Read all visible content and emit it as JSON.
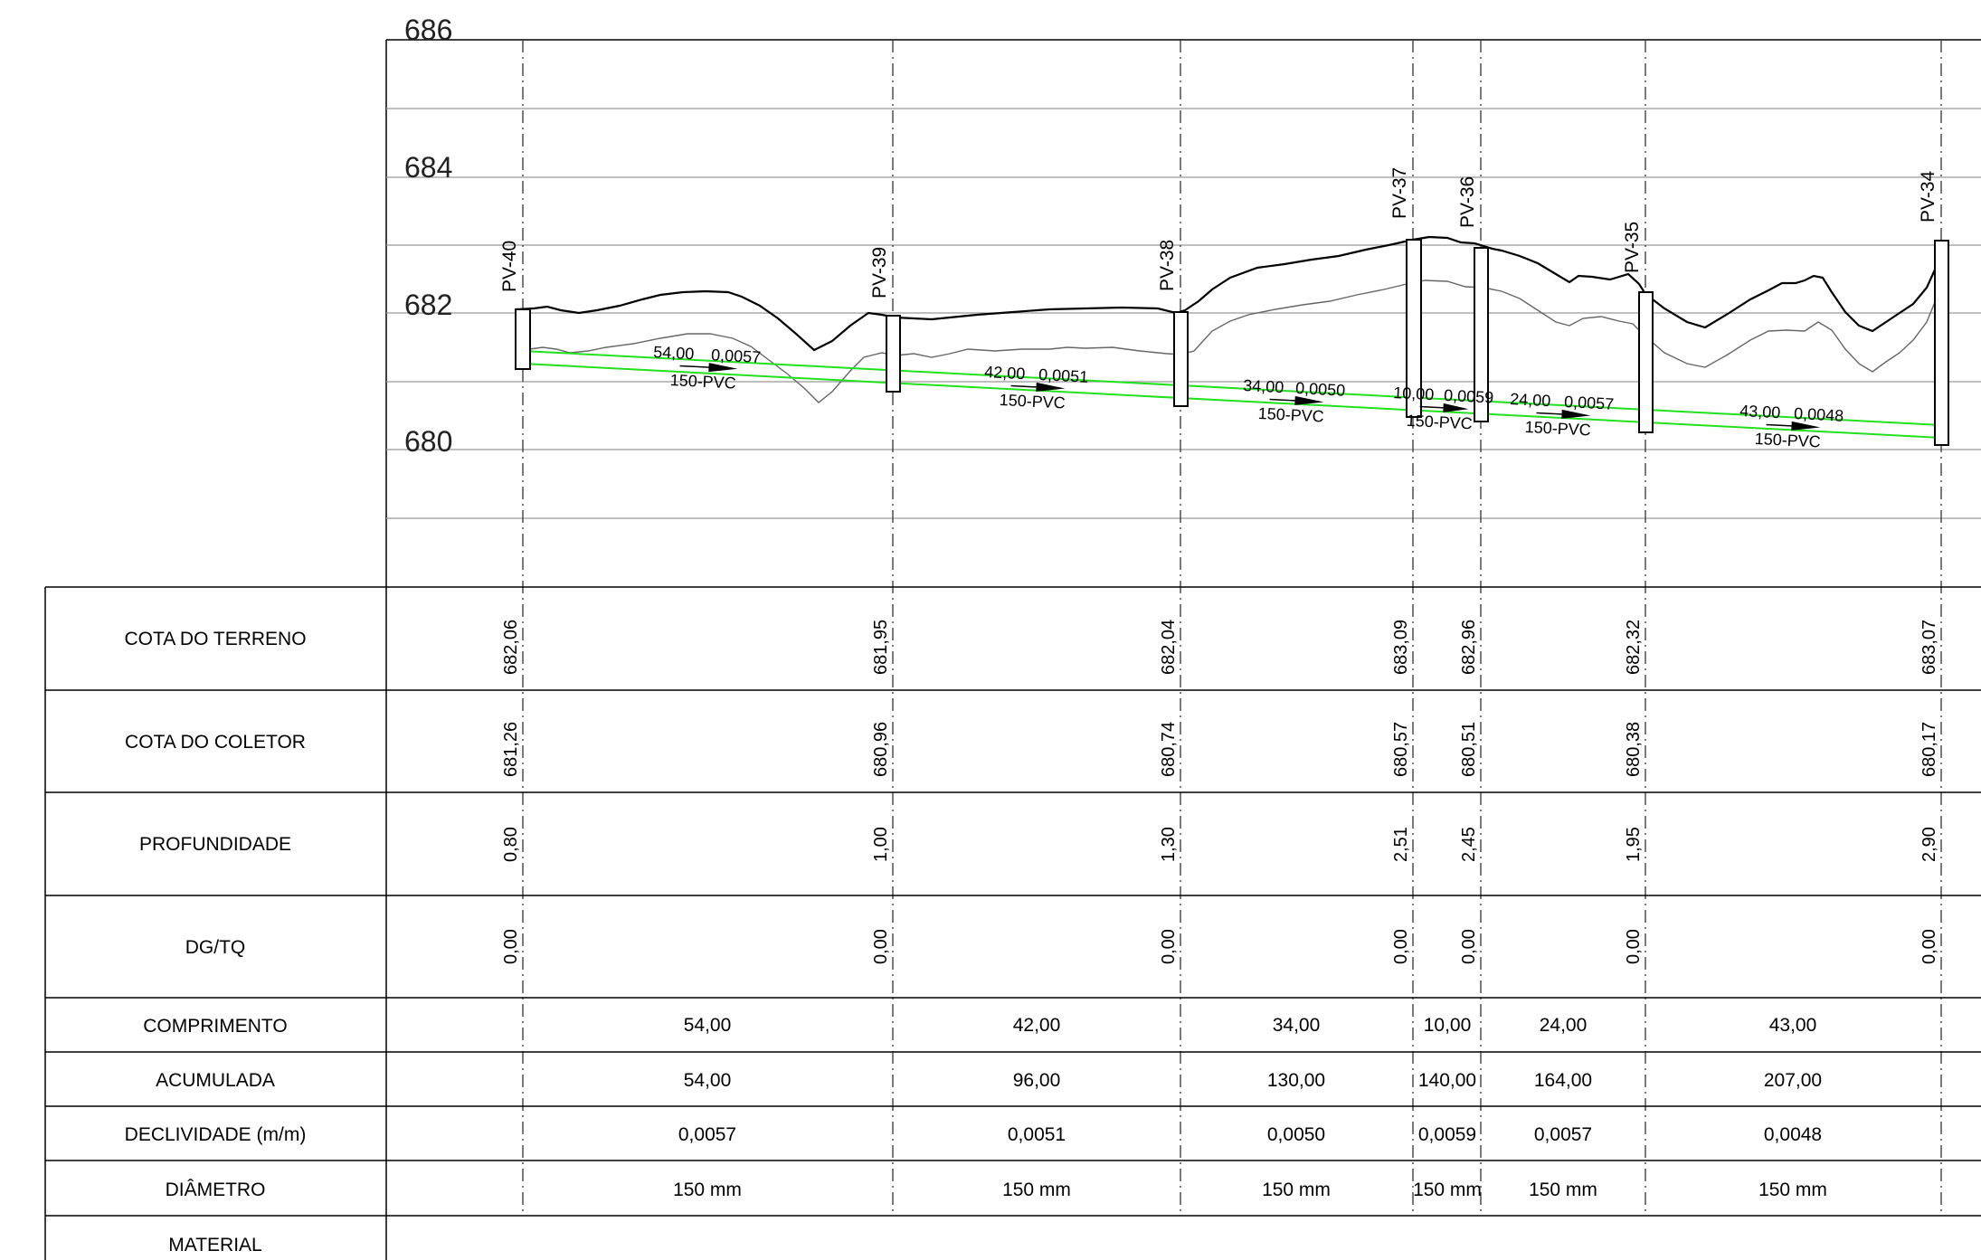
{
  "elevation_labels": [
    "686",
    "684",
    "682",
    "680"
  ],
  "row_labels": {
    "cota_terreno": "COTA DO TERRENO",
    "cota_coletor": "COTA DO COLETOR",
    "profundidade": "PROFUNDIDADE",
    "dgtq": "DG/TQ",
    "comprimento": "COMPRIMENTO",
    "acumulada": "ACUMULADA",
    "declividade": "DECLIVIDADE (m/m)",
    "diametro": "DIÂMETRO",
    "material": "MATERIAL"
  },
  "pvs": [
    {
      "name": "PV-40",
      "terreno": "682,06",
      "coletor": "681,26",
      "prof": "0,80",
      "dgtq": "0,00"
    },
    {
      "name": "PV-39",
      "terreno": "681,95",
      "coletor": "680,96",
      "prof": "1,00",
      "dgtq": "0,00"
    },
    {
      "name": "PV-38",
      "terreno": "682,04",
      "coletor": "680,74",
      "prof": "1,30",
      "dgtq": "0,00"
    },
    {
      "name": "PV-37",
      "terreno": "683,09",
      "coletor": "680,57",
      "prof": "2,51",
      "dgtq": "0,00"
    },
    {
      "name": "PV-36",
      "terreno": "682,96",
      "coletor": "680,51",
      "prof": "2,45",
      "dgtq": "0,00"
    },
    {
      "name": "PV-35",
      "terreno": "682,32",
      "coletor": "680,38",
      "prof": "1,95",
      "dgtq": "0,00"
    },
    {
      "name": "PV-34",
      "terreno": "683,07",
      "coletor": "680,17",
      "prof": "2,90",
      "dgtq": "0,00"
    }
  ],
  "segments": [
    {
      "comprimento": "54,00",
      "acumulada": "54,00",
      "declividade": "0,0057",
      "diametro": "150 mm",
      "tag_len": "54,00",
      "tag_slope": "0,0057",
      "tag_pipe": "150-PVC"
    },
    {
      "comprimento": "42,00",
      "acumulada": "96,00",
      "declividade": "0,0051",
      "diametro": "150 mm",
      "tag_len": "42,00",
      "tag_slope": "0,0051",
      "tag_pipe": "150-PVC"
    },
    {
      "comprimento": "34,00",
      "acumulada": "130,00",
      "declividade": "0,0050",
      "diametro": "150 mm",
      "tag_len": "34,00",
      "tag_slope": "0,0050",
      "tag_pipe": "150-PVC"
    },
    {
      "comprimento": "10,00",
      "acumulada": "140,00",
      "declividade": "0,0059",
      "diametro": "150 mm",
      "tag_len": "10,00",
      "tag_slope": "0,0059",
      "tag_pipe": "150-PVC"
    },
    {
      "comprimento": "24,00",
      "acumulada": "164,00",
      "declividade": "0,0057",
      "diametro": "150 mm",
      "tag_len": "24,00",
      "tag_slope": "0,0057",
      "tag_pipe": "150-PVC"
    },
    {
      "comprimento": "43,00",
      "acumulada": "207,00",
      "declividade": "0,0048",
      "diametro": "150 mm",
      "tag_len": "43,00",
      "tag_slope": "0,0048",
      "tag_pipe": "150-PVC"
    }
  ],
  "colors": {
    "pipe": "#22e01e",
    "terrain": "#000000",
    "grid": "#999999"
  }
}
